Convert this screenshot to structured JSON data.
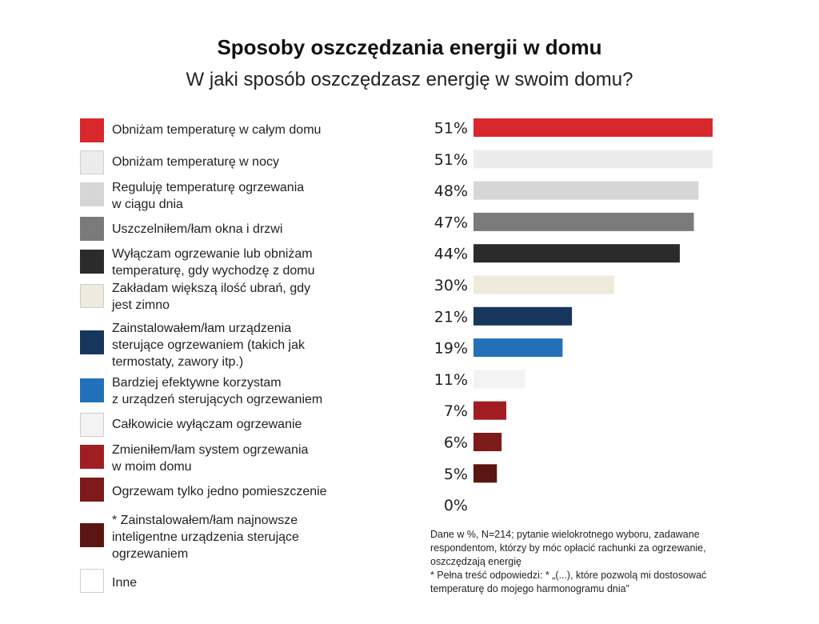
{
  "title": "Sposoby oszczędzania energii w domu",
  "subtitle": "W jaki sposób oszczędzasz energię w swoim domu?",
  "chart_data": {
    "type": "bar",
    "orientation": "horizontal",
    "title": "Sposoby oszczędzania energii w domu",
    "subtitle": "W jaki sposób oszczędzasz energię w swoim domu?",
    "xlabel": "",
    "ylabel": "",
    "xlim": [
      0,
      51
    ],
    "grid": false,
    "legend": "left",
    "categories": [
      "Obniżam temperaturę w całym domu",
      "Obniżam temperaturę w nocy",
      "Reguluję temperaturę ogrzewania\nw ciągu dnia",
      "Uszczelniłem/łam okna i drzwi",
      "Wyłączam ogrzewanie lub obniżam\ntemperaturę, gdy wychodzę z domu",
      "Zakładam większą ilość ubrań, gdy\njest zimno",
      "Zainstalowałem/łam urządzenia\nsterujące ogrzewaniem (takich jak\ntermostaty, zawory itp.)",
      "Bardziej efektywne korzystam\nz urządzeń sterujących ogrzewaniem",
      "Całkowicie wyłączam ogrzewanie",
      "Zmieniłem/łam system ogrzewania\nw moim domu",
      "Ogrzewam tylko jedno pomieszczenie",
      "* Zainstalowałem/łam najnowsze\n   inteligentne urządzenia sterujące\n   ogrzewaniem",
      "Inne"
    ],
    "values": [
      51,
      51,
      48,
      47,
      44,
      30,
      21,
      19,
      11,
      7,
      6,
      5,
      0
    ],
    "value_labels": [
      "51%",
      "51%",
      "48%",
      "47%",
      "44%",
      "30%",
      "21%",
      "19%",
      "11%",
      "7%",
      "6%",
      "5%",
      "0%"
    ],
    "colors": [
      "#d9272e",
      "#ececec",
      "#d6d6d6",
      "#7a7a7a",
      "#2b2b2b",
      "#eeeadc",
      "#16365c",
      "#2271b8",
      "#f3f3f3",
      "#a01e22",
      "#7d1a1a",
      "#5c1612",
      "#ffffff"
    ]
  },
  "note": "Dane w %, N=214; pytanie wielokrotnego wyboru, zadawane\nrespondentom, którzy by móc opłacić rachunki za ogrzewanie,\noszczędzają energię\n* Pełna treść odpowiedzi: * „(...), które pozwolą mi dostosować\n   temperaturę do mojego harmonogramu dnia”"
}
